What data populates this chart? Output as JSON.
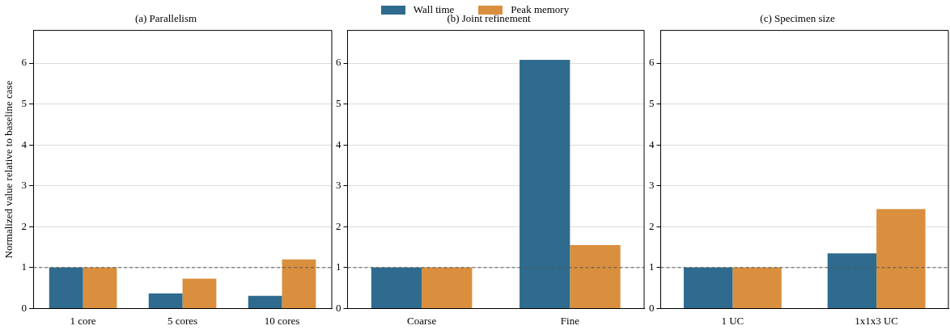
{
  "chart_data": [
    {
      "type": "bar",
      "title": "(a) Parallelism",
      "ylabel": "Normalized value relative to baseline case",
      "categories": [
        "1 core",
        "5 cores",
        "10 cores"
      ],
      "series": [
        {
          "name": "Wall time",
          "color": "#2e6b8e",
          "values": [
            1,
            0.37,
            0.31
          ]
        },
        {
          "name": "Peak memory",
          "color": "#d98f3e",
          "values": [
            1,
            0.73,
            1.2
          ]
        }
      ],
      "ylim": [
        0,
        6.8
      ],
      "yticks": [
        0,
        1,
        2,
        3,
        4,
        5,
        6
      ],
      "grid": "y",
      "legend": "top",
      "ref_lines": [
        {
          "axis": "y",
          "value": 1,
          "color": "#555555",
          "line_style": "dashed"
        }
      ]
    },
    {
      "type": "bar",
      "title": "(b) Joint refinement",
      "categories": [
        "Coarse",
        "Fine"
      ],
      "series": [
        {
          "color": "#2e6b8e",
          "values": [
            1,
            6.08
          ]
        },
        {
          "color": "#d98f3e",
          "values": [
            1,
            1.55
          ]
        }
      ],
      "ylim": [
        0,
        6.8
      ],
      "yticks": [
        0,
        1,
        2,
        3,
        4,
        5,
        6
      ],
      "grid": "y",
      "ref_lines": [
        {
          "axis": "y",
          "value": 1,
          "color": "#555555",
          "line_style": "dashed"
        }
      ]
    },
    {
      "type": "bar",
      "title": "(c) Specimen size",
      "categories": [
        "1 UC",
        "1x1x3 UC"
      ],
      "series": [
        {
          "color": "#2e6b8e",
          "values": [
            1,
            1.35
          ]
        },
        {
          "color": "#d98f3e",
          "values": [
            1,
            2.43
          ]
        }
      ],
      "ylim": [
        0,
        6.8
      ],
      "yticks": [
        0,
        1,
        2,
        3,
        4,
        5,
        6
      ],
      "grid": "y",
      "ref_lines": [
        {
          "axis": "y",
          "value": 1,
          "color": "#555555",
          "line_style": "dashed"
        }
      ]
    }
  ]
}
